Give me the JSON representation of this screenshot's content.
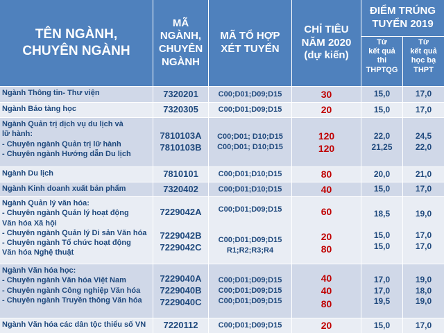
{
  "header": {
    "col1": "TÊN NGÀNH,\nCHUYÊN NGÀNH",
    "col2": "MÃ\nNGÀNH,\nCHUYÊN\nNGÀNH",
    "col3": "MÃ TỔ HỢP\nXÉT TUYỂN",
    "col4": "CHỈ TIÊU\nNĂM 2020\n(dự kiến)",
    "col5": "ĐIỂM TRÚNG\nTUYỂN 2019",
    "sub1": "Từ\nkết quả\nthi\nTHPTQG",
    "sub2": "Từ\nkết quả\nhọc bạ\nTHPT"
  },
  "rows": [
    {
      "name": "Ngành Thông tin- Thư viện",
      "code": "7320201",
      "combo": "C00;D01;D09;D15",
      "quota": "30",
      "s1": "15,0",
      "s2": "17,0"
    },
    {
      "name": "Ngành Bảo tàng học",
      "code": "7320305",
      "combo": "C00;D01;D09;D15",
      "quota": "20",
      "s1": "15,0",
      "s2": "17,0"
    },
    {
      "name": "Ngành Quản trị dịch vụ du lịch và\nlữ hành:\n - Chuyên ngành Quản trị lữ hành\n - Chuyên ngành Hướng dẫn Du lịch",
      "code": "7810103A\n7810103B",
      "combo": "C00;D01; D10;D15\nC00;D01; D10;D15",
      "quota": "120\n120",
      "s1": "22,0\n21,25",
      "s2": "24,5\n22,0"
    },
    {
      "name": "Ngành Du lịch",
      "code": "7810101",
      "combo": "C00;D01;D10;D15",
      "quota": "80",
      "s1": "20,0",
      "s2": "21,0"
    },
    {
      "name": "Ngành Kinh doanh xuất bản phẩm",
      "code": "7320402",
      "combo": "C00;D01;D10;D15",
      "quota": "40",
      "s1": "15,0",
      "s2": "17,0"
    },
    {
      "name": "Ngành Quản lý văn hóa:\n - Chuyên ngành Quản lý hoạt động\n   Văn hóa Xã hội\n - Chuyên ngành Quản lý Di sản Văn hóa\n - Chuyên ngành Tổ chức hoạt động\n   Văn hóa Nghệ thuật",
      "code": "7229042A\n\n7229042B\n7229042C",
      "combo": "C00;D01;D09;D15\n\n\nC00;D01;D09;D15\nR1;R2;R3;R4",
      "quota": "60\n\n20\n80",
      "s1": "18,5\n\n15,0\n15,0",
      "s2": "19,0\n\n17,0\n17,0"
    },
    {
      "name": "Ngành Văn hóa học:\n - Chuyên ngành Văn hóa Việt Nam\n - Chuyên ngành Công nghiệp Văn hóa\n - Chuyên ngành Truyền thông Văn hóa",
      "code": "7229040A\n7229040B\n7229040C",
      "combo": "C00;D01;D09;D15\nC00;D01;D09;D15\nC00;D01;D09;D15",
      "quota": "40\n40\n80",
      "s1": "17,0\n17,0\n19,5",
      "s2": "19,0\n18,0\n19,0"
    },
    {
      "name": "Ngành Văn hóa các dân tộc thiểu số VN",
      "code": "7220112",
      "combo": "C00;D01;D09;D15",
      "quota": "20",
      "s1": "15,0",
      "s2": "17,0"
    }
  ]
}
